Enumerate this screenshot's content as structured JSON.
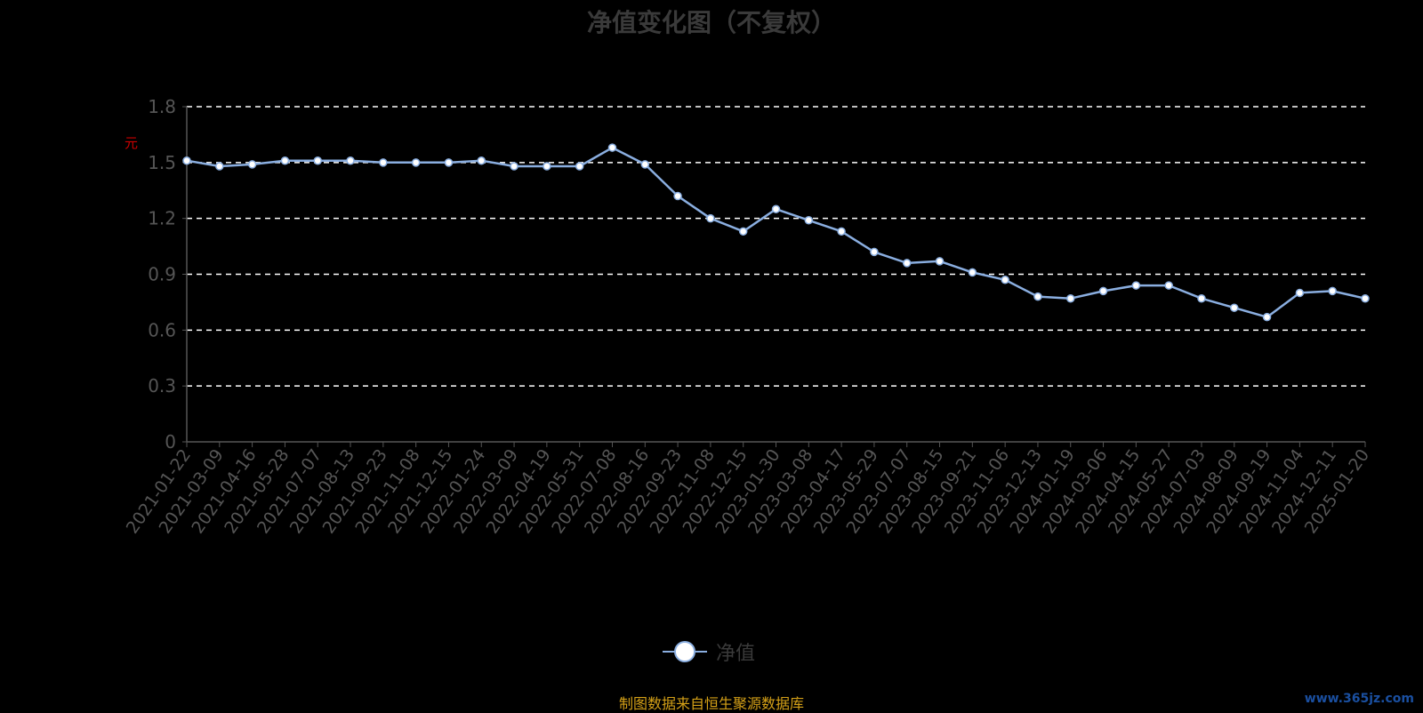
{
  "title": "净值变化图（不复权）",
  "y_unit": "元",
  "legend_label": "净值",
  "source_note": "制图数据来自恒生聚源数据库",
  "watermark": "www.365jz.com",
  "colors": {
    "background": "#000000",
    "line": "#8aaee0",
    "marker_fill": "#ffffff",
    "grid": "#ffffff",
    "axis_text": "#555555",
    "title": "#3a3a3a",
    "unit": "#cc0000",
    "source_note": "#d4a017"
  },
  "chart_data": {
    "type": "line",
    "title": "净值变化图（不复权）",
    "ylabel": "元",
    "ylim": [
      0,
      1.8
    ],
    "yticks": [
      "0",
      "0.3",
      "0.6",
      "0.9",
      "1.2",
      "1.5",
      "1.8"
    ],
    "grid": true,
    "legend_position": "bottom-center",
    "x": [
      "2021-01-22",
      "2021-03-09",
      "2021-04-16",
      "2021-05-28",
      "2021-07-07",
      "2021-08-13",
      "2021-09-23",
      "2021-11-08",
      "2021-12-15",
      "2022-01-24",
      "2022-03-09",
      "2022-04-19",
      "2022-05-31",
      "2022-07-08",
      "2022-08-16",
      "2022-09-23",
      "2022-11-08",
      "2022-12-15",
      "2023-01-30",
      "2023-03-08",
      "2023-04-17",
      "2023-05-29",
      "2023-07-07",
      "2023-08-15",
      "2023-09-21",
      "2023-11-06",
      "2023-12-13",
      "2024-01-19",
      "2024-03-06",
      "2024-04-15",
      "2024-05-27",
      "2024-07-03",
      "2024-08-09",
      "2024-09-19",
      "2024-11-04",
      "2024-12-11",
      "2025-01-20"
    ],
    "series": [
      {
        "name": "净值",
        "values": [
          1.51,
          1.48,
          1.49,
          1.51,
          1.51,
          1.51,
          1.5,
          1.5,
          1.5,
          1.51,
          1.48,
          1.48,
          1.48,
          1.58,
          1.49,
          1.32,
          1.2,
          1.13,
          1.25,
          1.19,
          1.13,
          1.02,
          0.96,
          0.97,
          0.91,
          0.87,
          0.78,
          0.77,
          0.81,
          0.84,
          0.84,
          0.77,
          0.72,
          0.67,
          0.8,
          0.81,
          0.77
        ]
      }
    ]
  }
}
